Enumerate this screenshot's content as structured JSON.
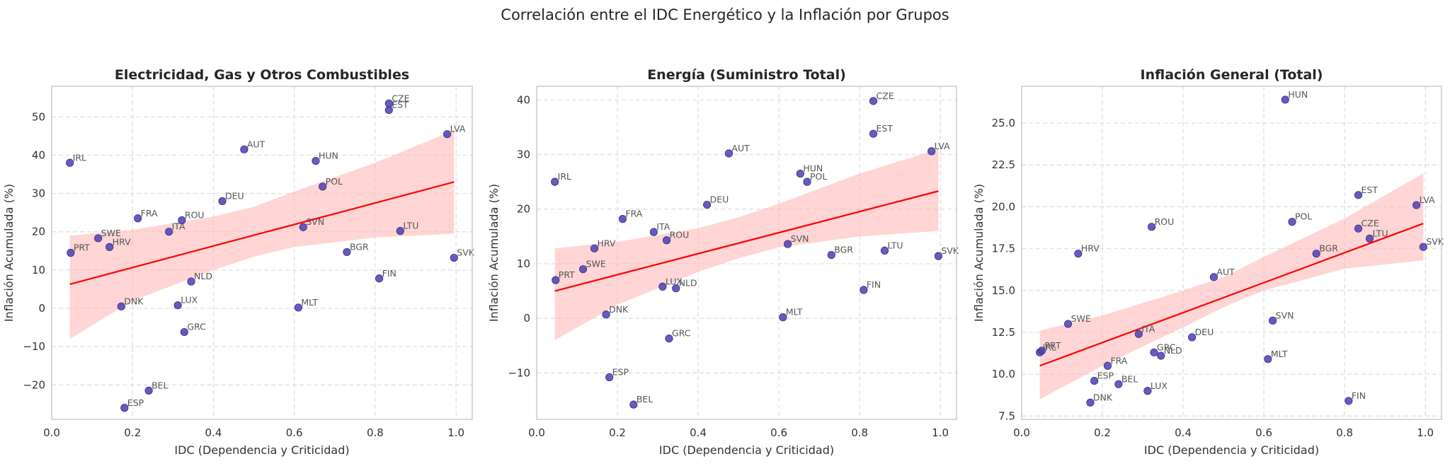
{
  "figure": {
    "suptitle": "Correlación entre el IDC Energético y la Inflación por Grupos"
  },
  "colors": {
    "point": "#4B3FAF",
    "regression_line": "#FF0000",
    "confidence_band": "#FFB3B3",
    "grid": "#DDDDDD",
    "frame": "#CCCCCC"
  },
  "chart_data": [
    {
      "type": "scatter",
      "title": "Electricidad, Gas y Otros Combustibles",
      "xlabel": "IDC (Dependencia y Criticidad)",
      "ylabel": "Inflación Acumulada (%)",
      "xlim": [
        0.0,
        1.04
      ],
      "ylim": [
        -29,
        58
      ],
      "xticks": [
        0.0,
        0.2,
        0.4,
        0.6,
        0.8,
        1.0
      ],
      "xtick_labels": [
        "0.0",
        "0.2",
        "0.4",
        "0.6",
        "0.8",
        "1.0"
      ],
      "yticks": [
        -20,
        -10,
        0,
        10,
        20,
        30,
        40,
        50
      ],
      "ytick_labels": [
        "−20",
        "−10",
        "0",
        "10",
        "20",
        "30",
        "40",
        "50"
      ],
      "grid": true,
      "points": [
        {
          "label": "IRL",
          "x": 0.045,
          "y": 38.0
        },
        {
          "label": "PRT",
          "x": 0.047,
          "y": 14.5
        },
        {
          "label": "SWE",
          "x": 0.115,
          "y": 18.3
        },
        {
          "label": "HRV",
          "x": 0.143,
          "y": 16.0
        },
        {
          "label": "FRA",
          "x": 0.213,
          "y": 23.5
        },
        {
          "label": "ITA",
          "x": 0.29,
          "y": 20.0
        },
        {
          "label": "ROU",
          "x": 0.322,
          "y": 23.0
        },
        {
          "label": "DEU",
          "x": 0.422,
          "y": 28.0
        },
        {
          "label": "AUT",
          "x": 0.476,
          "y": 41.5
        },
        {
          "label": "DNK",
          "x": 0.172,
          "y": 0.5
        },
        {
          "label": "LUX",
          "x": 0.312,
          "y": 0.8
        },
        {
          "label": "NLD",
          "x": 0.345,
          "y": 7.0
        },
        {
          "label": "GRC",
          "x": 0.328,
          "y": -6.2
        },
        {
          "label": "BEL",
          "x": 0.24,
          "y": -21.5
        },
        {
          "label": "ESP",
          "x": 0.18,
          "y": -26.0
        },
        {
          "label": "HUN",
          "x": 0.653,
          "y": 38.5
        },
        {
          "label": "POL",
          "x": 0.67,
          "y": 31.8
        },
        {
          "label": "SVN",
          "x": 0.622,
          "y": 21.2
        },
        {
          "label": "MLT",
          "x": 0.61,
          "y": 0.2
        },
        {
          "label": "BGR",
          "x": 0.73,
          "y": 14.7
        },
        {
          "label": "FIN",
          "x": 0.81,
          "y": 7.8
        },
        {
          "label": "LTU",
          "x": 0.862,
          "y": 20.2
        },
        {
          "label": "CZE",
          "x": 0.834,
          "y": 53.5
        },
        {
          "label": "EST",
          "x": 0.834,
          "y": 51.8
        },
        {
          "label": "LVA",
          "x": 0.978,
          "y": 45.5
        },
        {
          "label": "SVK",
          "x": 0.995,
          "y": 13.2
        }
      ],
      "regression": {
        "x": [
          0.045,
          0.995
        ],
        "y": [
          6.3,
          33.0
        ]
      },
      "confidence_band": {
        "x": [
          0.045,
          0.2,
          0.4,
          0.5,
          0.6,
          0.8,
          0.995
        ],
        "lower": [
          -8.0,
          2.0,
          10.0,
          13.5,
          16.0,
          18.5,
          19.5
        ],
        "upper": [
          19.0,
          20.5,
          24.0,
          26.5,
          30.5,
          38.0,
          46.5
        ]
      }
    },
    {
      "type": "scatter",
      "title": "Energía (Suministro Total)",
      "xlabel": "IDC (Dependencia y Criticidad)",
      "ylabel": "Inflación Acumulada (%)",
      "xlim": [
        0.0,
        1.04
      ],
      "ylim": [
        -18.5,
        42.5
      ],
      "xticks": [
        0.0,
        0.2,
        0.4,
        0.6,
        0.8,
        1.0
      ],
      "xtick_labels": [
        "0.0",
        "0.2",
        "0.4",
        "0.6",
        "0.8",
        "1.0"
      ],
      "yticks": [
        -10,
        0,
        10,
        20,
        30,
        40
      ],
      "ytick_labels": [
        "−10",
        "0",
        "10",
        "20",
        "30",
        "40"
      ],
      "grid": true,
      "points": [
        {
          "label": "IRL",
          "x": 0.045,
          "y": 25.0
        },
        {
          "label": "PRT",
          "x": 0.047,
          "y": 7.0
        },
        {
          "label": "SWE",
          "x": 0.115,
          "y": 9.0
        },
        {
          "label": "HRV",
          "x": 0.143,
          "y": 12.8
        },
        {
          "label": "FRA",
          "x": 0.213,
          "y": 18.2
        },
        {
          "label": "ITA",
          "x": 0.29,
          "y": 15.8
        },
        {
          "label": "ROU",
          "x": 0.322,
          "y": 14.3
        },
        {
          "label": "DEU",
          "x": 0.422,
          "y": 20.8
        },
        {
          "label": "AUT",
          "x": 0.476,
          "y": 30.2
        },
        {
          "label": "DNK",
          "x": 0.172,
          "y": 0.7
        },
        {
          "label": "LUX",
          "x": 0.312,
          "y": 5.8
        },
        {
          "label": "NLD",
          "x": 0.345,
          "y": 5.5
        },
        {
          "label": "GRC",
          "x": 0.328,
          "y": -3.7
        },
        {
          "label": "ESP",
          "x": 0.18,
          "y": -10.8
        },
        {
          "label": "BEL",
          "x": 0.24,
          "y": -15.8
        },
        {
          "label": "HUN",
          "x": 0.653,
          "y": 26.5
        },
        {
          "label": "POL",
          "x": 0.67,
          "y": 25.0
        },
        {
          "label": "SVN",
          "x": 0.622,
          "y": 13.6
        },
        {
          "label": "MLT",
          "x": 0.61,
          "y": 0.2
        },
        {
          "label": "BGR",
          "x": 0.73,
          "y": 11.6
        },
        {
          "label": "FIN",
          "x": 0.81,
          "y": 5.2
        },
        {
          "label": "LTU",
          "x": 0.862,
          "y": 12.4
        },
        {
          "label": "CZE",
          "x": 0.834,
          "y": 39.8
        },
        {
          "label": "EST",
          "x": 0.834,
          "y": 33.8
        },
        {
          "label": "LVA",
          "x": 0.978,
          "y": 30.6
        },
        {
          "label": "SVK",
          "x": 0.995,
          "y": 11.4
        }
      ],
      "regression": {
        "x": [
          0.045,
          0.995
        ],
        "y": [
          5.0,
          23.3
        ]
      },
      "confidence_band": {
        "x": [
          0.045,
          0.2,
          0.4,
          0.5,
          0.6,
          0.8,
          0.995
        ],
        "lower": [
          -4.0,
          2.5,
          8.5,
          11.0,
          13.0,
          15.0,
          16.0
        ],
        "upper": [
          12.8,
          14.0,
          16.5,
          18.5,
          21.0,
          26.5,
          31.0
        ]
      }
    },
    {
      "type": "scatter",
      "title": "Inflación General (Total)",
      "xlabel": "IDC (Dependencia y Criticidad)",
      "ylabel": "Inflación Acumulada (%)",
      "xlim": [
        0.0,
        1.04
      ],
      "ylim": [
        7.3,
        27.2
      ],
      "xticks": [
        0.0,
        0.2,
        0.4,
        0.6,
        0.8,
        1.0
      ],
      "xtick_labels": [
        "0.0",
        "0.2",
        "0.4",
        "0.6",
        "0.8",
        "1.0"
      ],
      "yticks": [
        7.5,
        10.0,
        12.5,
        15.0,
        17.5,
        20.0,
        22.5,
        25.0
      ],
      "ytick_labels": [
        "7.5",
        "10.0",
        "12.5",
        "15.0",
        "17.5",
        "20.0",
        "22.5",
        "25.0"
      ],
      "grid": true,
      "points": [
        {
          "label": "IRL",
          "x": 0.045,
          "y": 11.3
        },
        {
          "label": "PRT",
          "x": 0.05,
          "y": 11.4
        },
        {
          "label": "SWE",
          "x": 0.115,
          "y": 13.0
        },
        {
          "label": "HRV",
          "x": 0.14,
          "y": 17.2
        },
        {
          "label": "FRA",
          "x": 0.213,
          "y": 10.5
        },
        {
          "label": "ESP",
          "x": 0.18,
          "y": 9.6
        },
        {
          "label": "DNK",
          "x": 0.17,
          "y": 8.3
        },
        {
          "label": "BEL",
          "x": 0.24,
          "y": 9.4
        },
        {
          "label": "ITA",
          "x": 0.29,
          "y": 12.4
        },
        {
          "label": "ROU",
          "x": 0.322,
          "y": 18.8
        },
        {
          "label": "GRC",
          "x": 0.328,
          "y": 11.3
        },
        {
          "label": "NLD",
          "x": 0.345,
          "y": 11.1
        },
        {
          "label": "LUX",
          "x": 0.312,
          "y": 9.0
        },
        {
          "label": "DEU",
          "x": 0.422,
          "y": 12.2
        },
        {
          "label": "AUT",
          "x": 0.476,
          "y": 15.8
        },
        {
          "label": "HUN",
          "x": 0.653,
          "y": 26.4
        },
        {
          "label": "POL",
          "x": 0.67,
          "y": 19.1
        },
        {
          "label": "SVN",
          "x": 0.622,
          "y": 13.2
        },
        {
          "label": "MLT",
          "x": 0.61,
          "y": 10.9
        },
        {
          "label": "BGR",
          "x": 0.73,
          "y": 17.2
        },
        {
          "label": "FIN",
          "x": 0.81,
          "y": 8.4
        },
        {
          "label": "EST",
          "x": 0.834,
          "y": 20.7
        },
        {
          "label": "CZE",
          "x": 0.834,
          "y": 18.7
        },
        {
          "label": "LTU",
          "x": 0.862,
          "y": 18.1
        },
        {
          "label": "LVA",
          "x": 0.978,
          "y": 20.1
        },
        {
          "label": "SVK",
          "x": 0.995,
          "y": 17.6
        }
      ],
      "regression": {
        "x": [
          0.045,
          0.995
        ],
        "y": [
          10.5,
          19.0
        ]
      },
      "confidence_band": {
        "x": [
          0.045,
          0.2,
          0.4,
          0.5,
          0.6,
          0.8,
          0.995
        ],
        "lower": [
          8.5,
          10.5,
          12.8,
          14.0,
          15.0,
          16.3,
          16.8
        ],
        "upper": [
          12.6,
          13.5,
          15.0,
          15.8,
          17.0,
          19.3,
          22.0
        ]
      }
    }
  ]
}
